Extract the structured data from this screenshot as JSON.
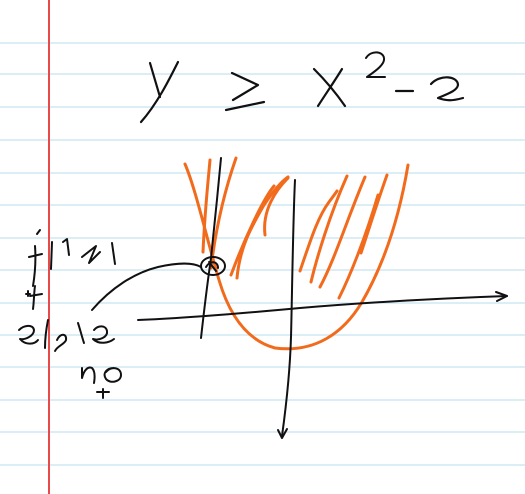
{
  "page": {
    "background": "#ffffff",
    "rule_color": "#cfe7f2",
    "margin_color": "#e84a4a"
  },
  "ink": {
    "black": "#111111",
    "orange": "#f26b1d"
  },
  "handwriting": {
    "inequality": "y ≥ x² − 2",
    "annotation": "if l ≥ l",
    "else_label": "else",
    "no_label": "no"
  }
}
